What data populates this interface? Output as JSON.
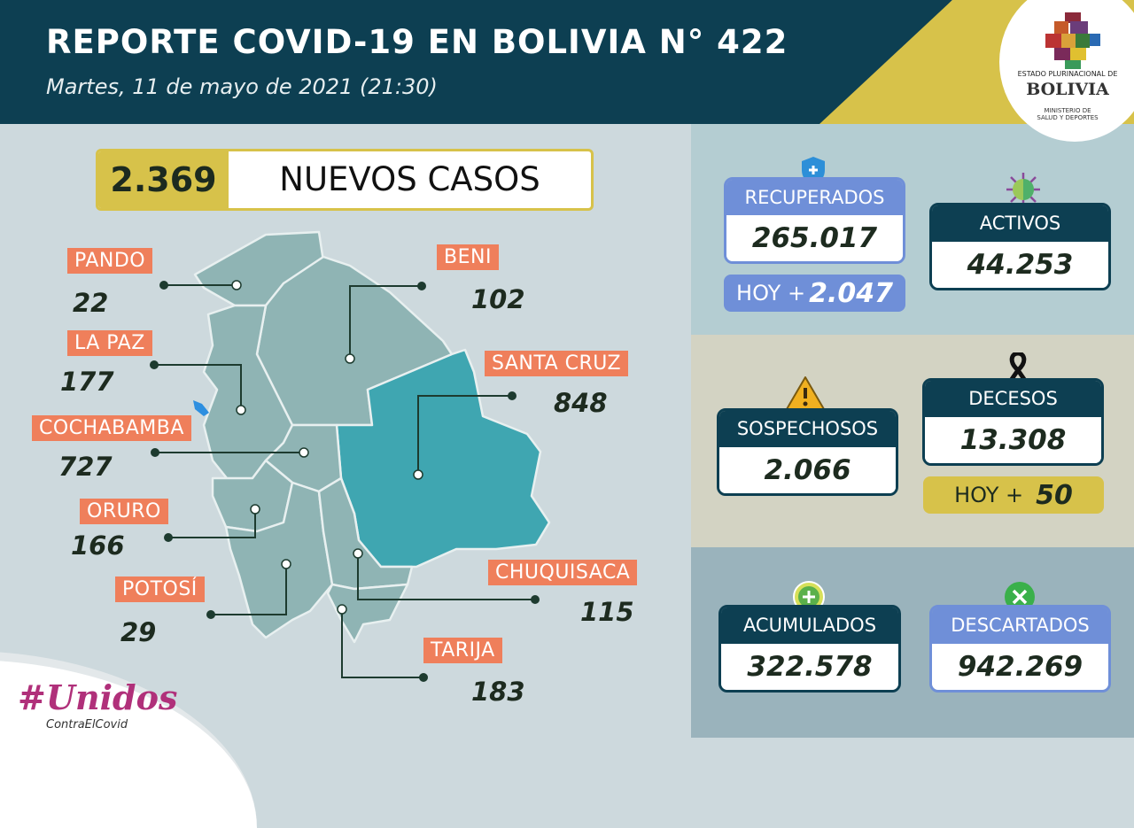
{
  "header": {
    "title": "REPORTE COVID-19 EN BOLIVIA N° 422",
    "subtitle": "Martes, 11 de mayo de 2021 (21:30)"
  },
  "logo": {
    "line1": "ESTADO PLURINACIONAL DE",
    "line2": "BOLIVIA",
    "line3": "MINISTERIO DE",
    "line4": "SALUD Y DEPORTES"
  },
  "new_cases": {
    "value": "2.369",
    "label": "NUEVOS CASOS"
  },
  "departments": [
    {
      "name": "PANDO",
      "cases": "22"
    },
    {
      "name": "LA PAZ",
      "cases": "177"
    },
    {
      "name": "COCHABAMBA",
      "cases": "727"
    },
    {
      "name": "ORURO",
      "cases": "166"
    },
    {
      "name": "POTOSÍ",
      "cases": "29"
    },
    {
      "name": "BENI",
      "cases": "102"
    },
    {
      "name": "SANTA CRUZ",
      "cases": "848"
    },
    {
      "name": "CHUQUISACA",
      "cases": "115"
    },
    {
      "name": "TARIJA",
      "cases": "183"
    }
  ],
  "stats": {
    "recuperados": {
      "label": "RECUPERADOS",
      "value": "265.017",
      "hoy_label": "HOY +",
      "hoy_value": "2.047",
      "icon": "shield-plus-icon"
    },
    "activos": {
      "label": "ACTIVOS",
      "value": "44.253",
      "icon": "virus-icon"
    },
    "sospechosos": {
      "label": "SOSPECHOSOS",
      "value": "2.066",
      "icon": "warning-icon"
    },
    "decesos": {
      "label": "DECESOS",
      "value": "13.308",
      "hoy_label": "HOY +",
      "hoy_value": "50",
      "icon": "mourning-ribbon-icon"
    },
    "acumulados": {
      "label": "ACUMULADOS",
      "value": "322.578",
      "icon": "plus-circle-icon"
    },
    "descartados": {
      "label": "DESCARTADOS",
      "value": "942.269",
      "icon": "x-circle-icon"
    }
  },
  "campaign": {
    "line1": "#Unidos",
    "line2": "ContraElCovid"
  },
  "colors": {
    "header": "#0d3f52",
    "gold": "#d7c24a",
    "label": "#ef7f5b",
    "recuperados": "#6f8fd8",
    "santa_cruz": "#3fa6b1",
    "map": "#8fb4b4"
  }
}
